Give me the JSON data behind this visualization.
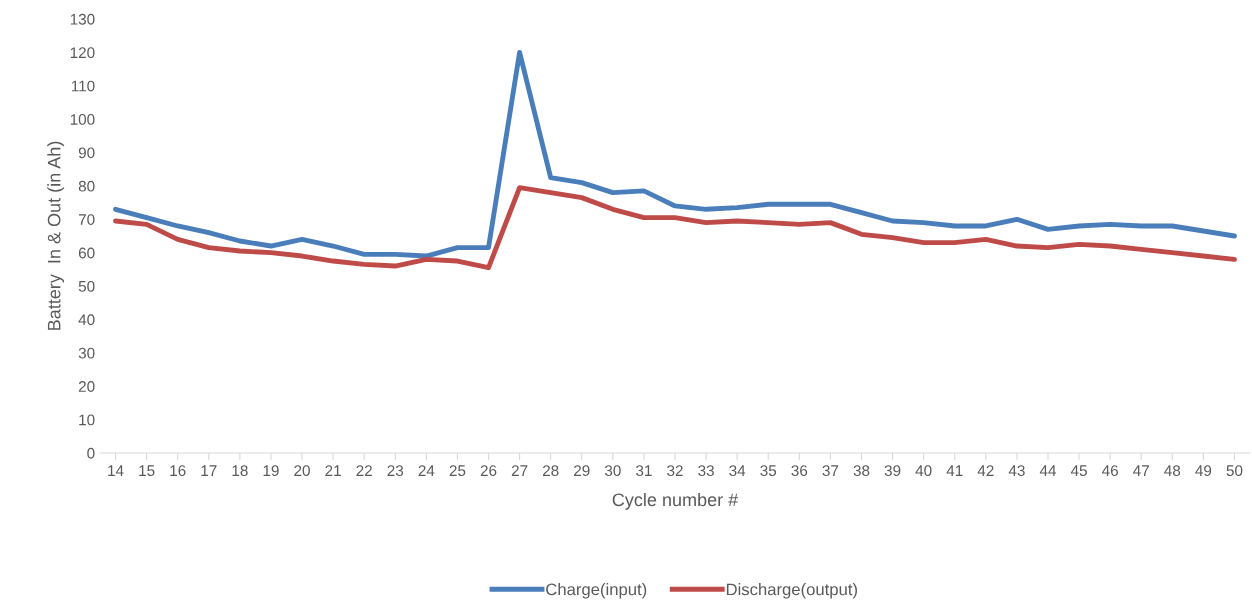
{
  "chart_data": {
    "type": "line",
    "xlabel": "Cycle number #",
    "ylabel": "Battery  In & Out (in Ah)",
    "categories": [
      "14",
      "15",
      "16",
      "17",
      "18",
      "19",
      "20",
      "21",
      "22",
      "23",
      "24",
      "25",
      "26",
      "27",
      "28",
      "29",
      "30",
      "31",
      "32",
      "33",
      "34",
      "35",
      "36",
      "37",
      "38",
      "39",
      "40",
      "41",
      "42",
      "43",
      "44",
      "45",
      "46",
      "47",
      "48",
      "49",
      "50"
    ],
    "series": [
      {
        "name": "Charge(input)",
        "color": "#4a7ebb",
        "values": [
          73,
          70.5,
          68,
          66,
          63.5,
          62,
          64,
          62,
          59.5,
          59.5,
          59,
          61.5,
          61.5,
          120,
          82.5,
          81,
          78,
          78.5,
          74,
          73,
          73.5,
          74.5,
          74.5,
          74.5,
          72,
          69.5,
          69,
          68,
          68,
          70,
          67,
          68,
          68.5,
          68,
          68,
          66.5,
          65
        ]
      },
      {
        "name": "Discharge(output)",
        "color": "#be4b48",
        "values": [
          69.5,
          68.5,
          64,
          61.5,
          60.5,
          60,
          59,
          57.5,
          56.5,
          56,
          58,
          57.5,
          55.5,
          79.5,
          78,
          76.5,
          73,
          70.5,
          70.5,
          69,
          69.5,
          69,
          68.5,
          69,
          65.5,
          64.5,
          63,
          63,
          64,
          62,
          61.5,
          62.5,
          62,
          61,
          60,
          59,
          58
        ]
      }
    ],
    "ylim": [
      0,
      130
    ],
    "yticks": [
      0,
      10,
      20,
      30,
      40,
      50,
      60,
      70,
      80,
      90,
      100,
      110,
      120,
      130
    ],
    "grid": false,
    "legend": "bottom",
    "marker": "none",
    "line_style": "solid"
  }
}
